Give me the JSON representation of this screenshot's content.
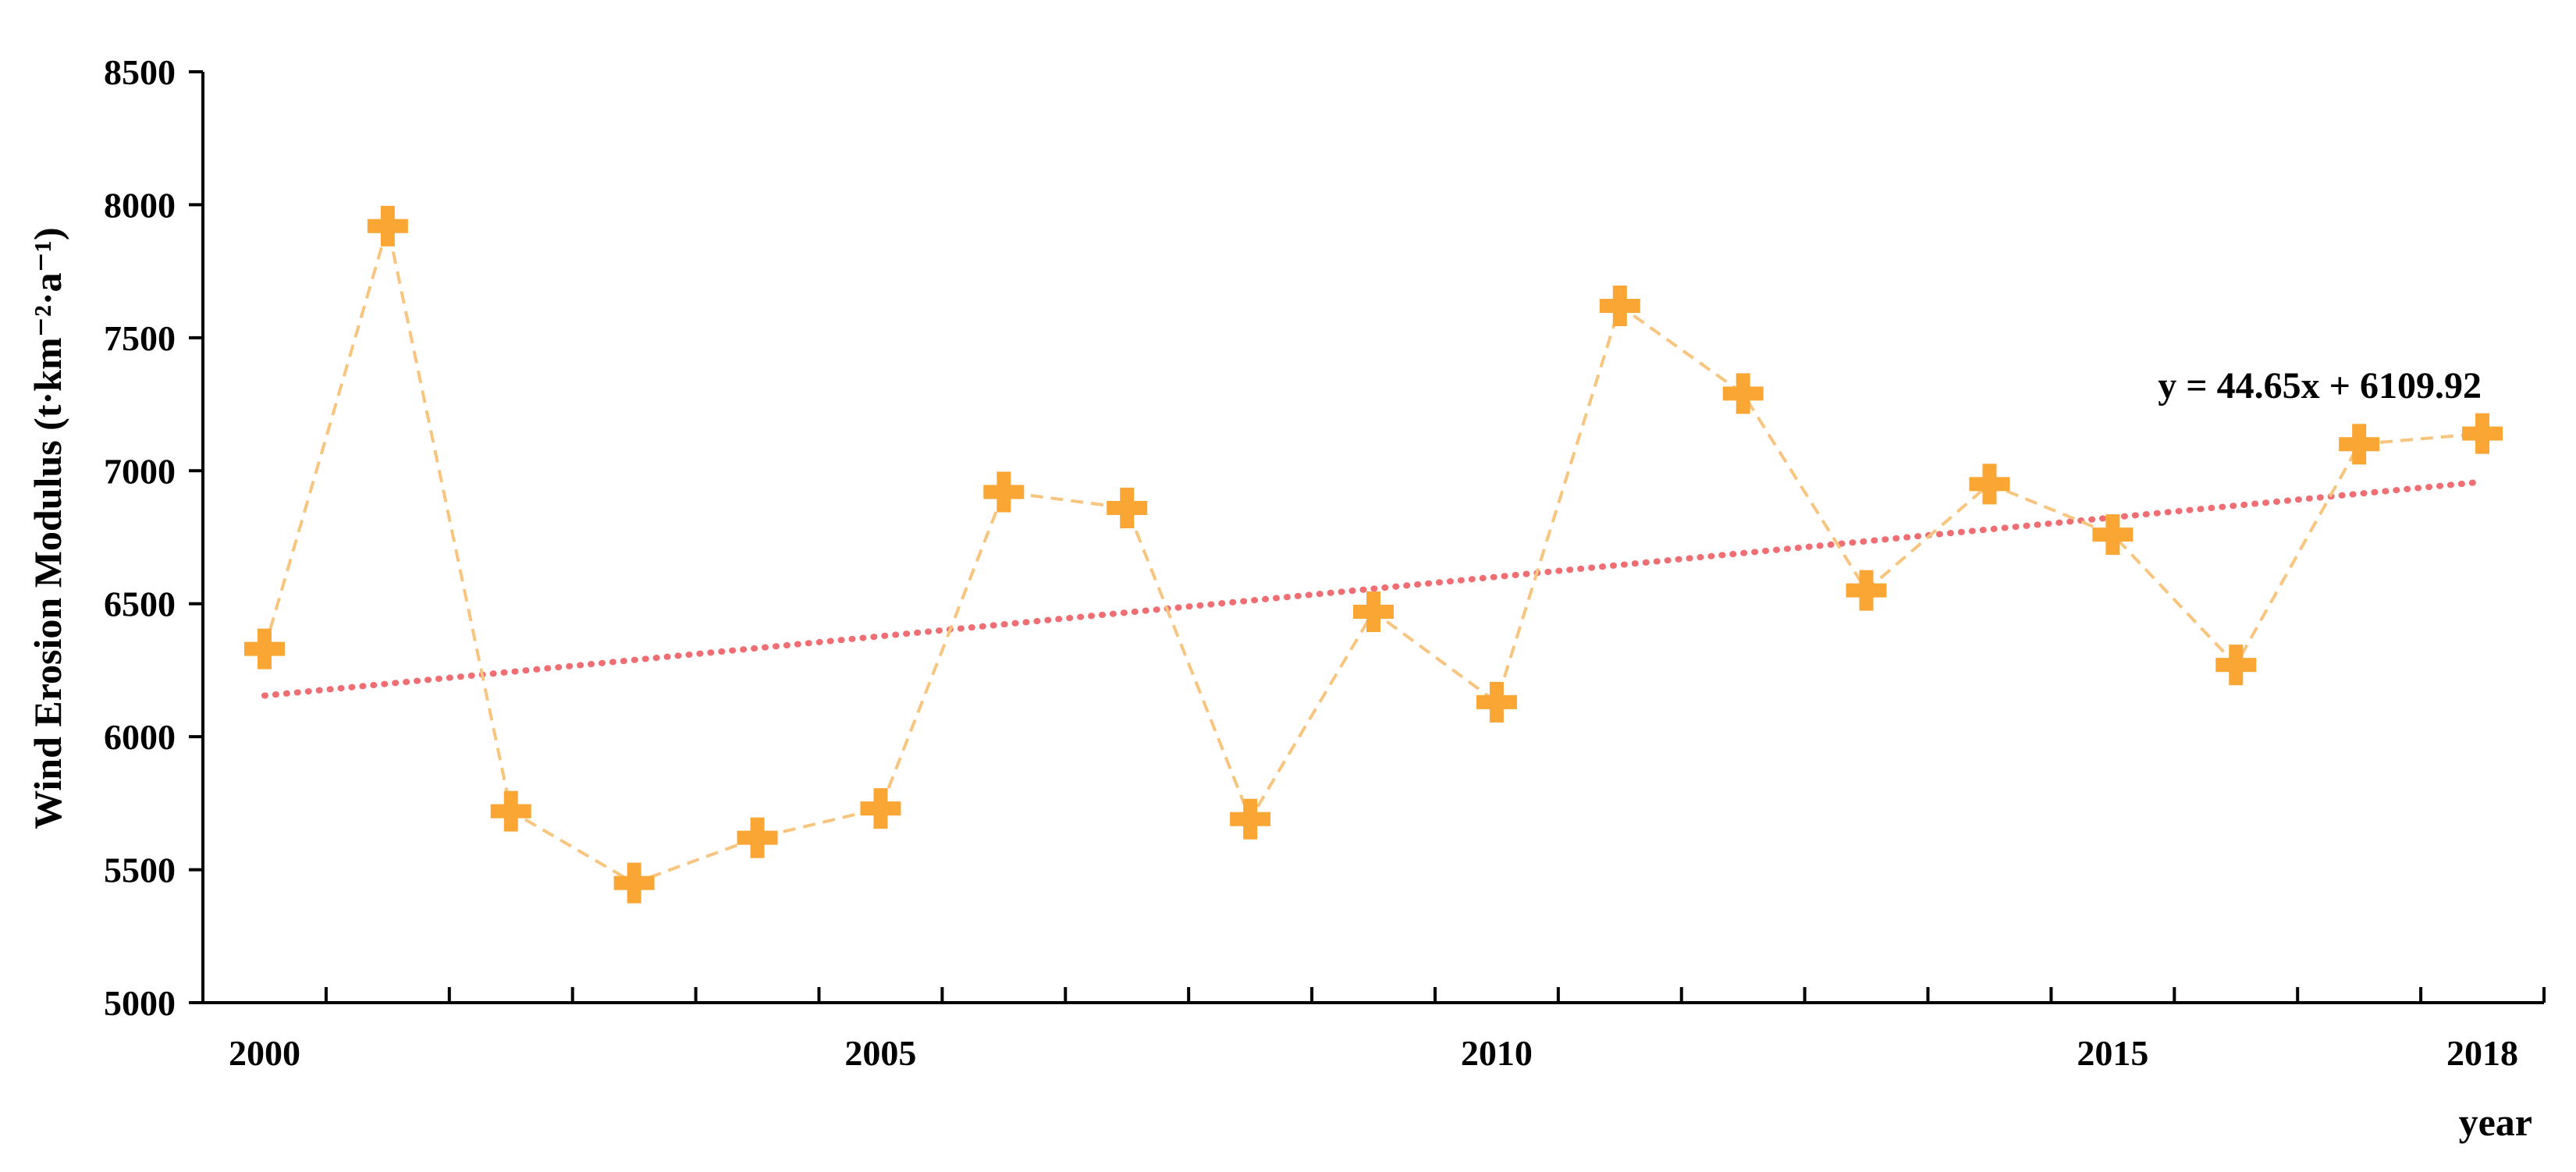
{
  "chart_data": {
    "type": "line",
    "ylabel": "Wind Erosion Modulus (t·km⁻²·a⁻¹)",
    "xlabel": "year",
    "ylim": [
      5000,
      8500
    ],
    "yticks": [
      5000,
      5500,
      6000,
      6500,
      7000,
      7500,
      8000,
      8500
    ],
    "xlim": [
      2000,
      2019
    ],
    "x_tick_labels": [
      {
        "year": 2000,
        "label": "2000"
      },
      {
        "year": 2005,
        "label": "2005"
      },
      {
        "year": 2010,
        "label": "2010"
      },
      {
        "year": 2015,
        "label": "2015"
      },
      {
        "year": 2018,
        "label": "2018"
      }
    ],
    "grid": false,
    "legend": "none",
    "series": [
      {
        "marker": "plus",
        "line_style": "dashed",
        "color": "#F9A635",
        "line_color": "#F8C57E",
        "x": [
          2000,
          2001,
          2002,
          2003,
          2004,
          2005,
          2006,
          2007,
          2008,
          2009,
          2010,
          2011,
          2012,
          2013,
          2014,
          2015,
          2016,
          2017,
          2018
        ],
        "values": [
          6330,
          7920,
          5720,
          5450,
          5620,
          5730,
          6920,
          6860,
          5690,
          6470,
          6130,
          7620,
          7290,
          6550,
          6950,
          6760,
          6270,
          7100,
          7140
        ]
      }
    ],
    "trendline": {
      "equation": "y = 44.65x + 6109.92",
      "slope": 44.65,
      "intercept": 6109.92,
      "color": "#EE6E73",
      "line_style": "dotted"
    }
  }
}
